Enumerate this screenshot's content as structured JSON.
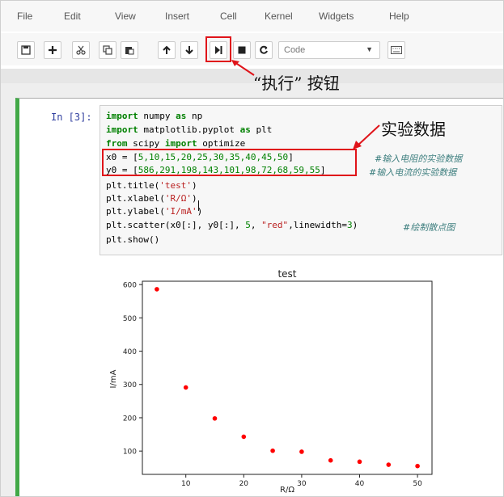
{
  "menu": [
    "File",
    "Edit",
    "View",
    "Insert",
    "Cell",
    "Kernel",
    "Widgets",
    "Help"
  ],
  "toolbar": {
    "icons": [
      "save-icon",
      "plus-icon",
      "scissors-icon",
      "copy-icon",
      "paste-icon",
      "arrow-up-icon",
      "arrow-down-icon",
      "run-icon",
      "stop-icon",
      "restart-icon",
      "keyboard-icon"
    ],
    "celltype": "Code"
  },
  "annotations": {
    "run_button_label": "“执行” 按钮",
    "data_label": "实验数据",
    "highlight_color": "#e0141a"
  },
  "cell": {
    "prompt": "In  [3]:",
    "code": {
      "l1a": "import",
      "l1b": " numpy ",
      "l1c": "as",
      "l1d": " np",
      "l2a": "import",
      "l2b": " matplotlib.pyplot ",
      "l2c": "as",
      "l2d": " plt",
      "l3a": "from",
      "l3b": " scipy ",
      "l3c": "import",
      "l3d": " optimize",
      "l4a": "x0 = [",
      "l4b": "5,10,15,20,25,30,35,40,45,50",
      "l4c": "]",
      "l5a": "y0 = [",
      "l5b": "586,291,198,143,101,98,72,68,59,55",
      "l5c": "]",
      "l6a": "plt.title(",
      "l6b": "'test'",
      "l6c": ")",
      "l7a": "plt.xlabel(",
      "l7b": "'R/Ω'",
      "l7c": ")",
      "l8a": "plt.ylabel(",
      "l8b": "'I/mA'",
      "l8c": ")",
      "l9a": "plt.scatter(x0[:], y0[:], ",
      "l9b": "5",
      "l9c": ", ",
      "l9d": "\"red\"",
      "l9e": ",linewidth=",
      "l9f": "3",
      "l9g": ")",
      "l10": "plt.show()",
      "c4": "#输入电阻的实验数据",
      "c5": "#输入电流的实验数据",
      "c9": "#绘制散点图"
    }
  },
  "chart_data": {
    "type": "scatter",
    "title": "test",
    "xlabel": "R/Ω",
    "ylabel": "I/mA",
    "x": [
      5,
      10,
      15,
      20,
      25,
      30,
      35,
      40,
      45,
      50
    ],
    "y": [
      586,
      291,
      198,
      143,
      101,
      98,
      72,
      68,
      59,
      55
    ],
    "color": "#ff0000",
    "xlim": [
      2.5,
      52.5
    ],
    "ylim": [
      30,
      610
    ],
    "xticks": [
      10,
      20,
      30,
      40,
      50
    ],
    "yticks": [
      100,
      200,
      300,
      400,
      500,
      600
    ],
    "grid": false
  }
}
